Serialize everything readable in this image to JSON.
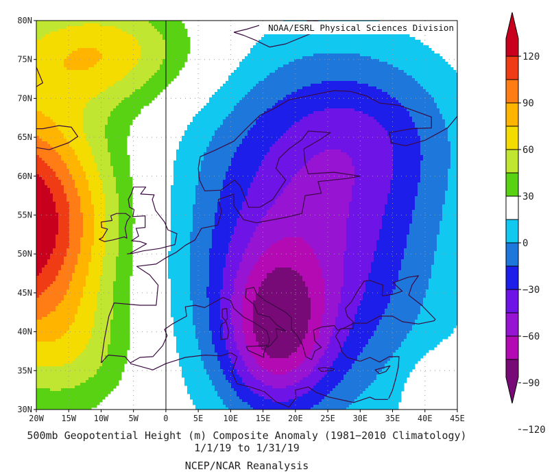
{
  "map": {
    "credit": "NOAA/ESRL Physical Sciences Division",
    "lat_labels": [
      "80N",
      "75N",
      "70N",
      "65N",
      "60N",
      "55N",
      "50N",
      "45N",
      "40N",
      "35N",
      "30N"
    ],
    "lon_labels": [
      "20W",
      "15W",
      "10W",
      "5W",
      "0",
      "5E",
      "10E",
      "15E",
      "20E",
      "25E",
      "30E",
      "35E",
      "40E",
      "45E"
    ],
    "lat_values": [
      80,
      75,
      70,
      65,
      60,
      55,
      50,
      45,
      40,
      35,
      30
    ],
    "lon_values": [
      -20,
      -15,
      -10,
      -5,
      0,
      5,
      10,
      15,
      20,
      25,
      30,
      35,
      40,
      45
    ],
    "field_peaks": [
      {
        "name": "positive-anomaly-center",
        "lon": -20,
        "lat": 54,
        "value": 125
      },
      {
        "name": "negative-anomaly-center",
        "lon": 17,
        "lat": 40,
        "value": -125
      }
    ]
  },
  "colorbar": {
    "levels": [
      "120",
      "90",
      "60",
      "30",
      "0",
      "−30",
      "−60",
      "−90",
      "−120"
    ],
    "bands": [
      {
        "min": 105,
        "max": 999,
        "color": "#c8001e"
      },
      {
        "min": 90,
        "max": 105,
        "color": "#f03c14"
      },
      {
        "min": 75,
        "max": 90,
        "color": "#ff7d14"
      },
      {
        "min": 60,
        "max": 75,
        "color": "#ffb400"
      },
      {
        "min": 45,
        "max": 60,
        "color": "#f5dc00"
      },
      {
        "min": 30,
        "max": 45,
        "color": "#c0e632"
      },
      {
        "min": 15,
        "max": 30,
        "color": "#5ad214"
      },
      {
        "min": -15,
        "max": 15,
        "color": "#ffffff"
      },
      {
        "min": -30,
        "max": -15,
        "color": "#10c8f0"
      },
      {
        "min": -45,
        "max": -30,
        "color": "#1e78dc"
      },
      {
        "min": -60,
        "max": -45,
        "color": "#1e1eea"
      },
      {
        "min": -75,
        "max": -60,
        "color": "#6e14e6"
      },
      {
        "min": -90,
        "max": -75,
        "color": "#9614d2"
      },
      {
        "min": -105,
        "max": -90,
        "color": "#b40ab4"
      },
      {
        "min": -999,
        "max": -105,
        "color": "#780a78"
      }
    ]
  },
  "captions": {
    "title": "500mb Geopotential Height (m) Composite Anomaly (1981−2010 Climatology)",
    "dates": "1/1/19  to 1/31/19",
    "source": "NCEP/NCAR Reanalysis"
  }
}
